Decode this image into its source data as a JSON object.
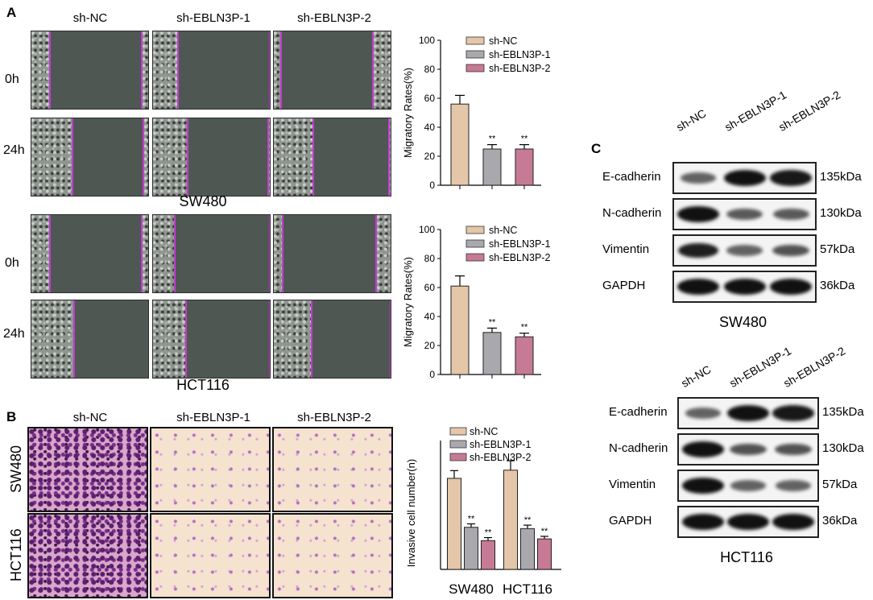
{
  "panels": {
    "A": {
      "letter": "A",
      "groups": [
        "sh-NC",
        "sh-EBLN3P-1",
        "sh-EBLN3P-2"
      ],
      "time_labels": [
        "0h",
        "24h"
      ],
      "cell_lines": [
        "SW480",
        "HCT116"
      ]
    },
    "B": {
      "letter": "B",
      "groups": [
        "sh-NC",
        "sh-EBLN3P-1",
        "sh-EBLN3P-2"
      ],
      "cell_lines": [
        "SW480",
        "HCT116"
      ]
    },
    "C": {
      "letter": "C",
      "groups": [
        "sh-NC",
        "sh-EBLN3P-1",
        "sh-EBLN3P-2"
      ],
      "proteins": [
        "E-cadherin",
        "N-cadherin",
        "Vimentin",
        "GAPDH"
      ],
      "sizes": [
        "135kDa",
        "130kDa",
        "57kDa",
        "36kDa"
      ],
      "cell_lines": [
        "SW480",
        "HCT116"
      ],
      "band_intensity": {
        "SW480": [
          [
            0.45,
            1.0,
            0.95
          ],
          [
            1.0,
            0.5,
            0.5
          ],
          [
            0.9,
            0.45,
            0.55
          ],
          [
            1.0,
            1.0,
            1.0
          ]
        ],
        "HCT116": [
          [
            0.45,
            1.0,
            0.95
          ],
          [
            1.0,
            0.55,
            0.55
          ],
          [
            1.0,
            0.45,
            0.45
          ],
          [
            1.0,
            1.0,
            1.0
          ]
        ]
      }
    }
  },
  "colors": {
    "sh-NC": "#e4c6a8",
    "sh-EBLN3P-1": "#a9a9ad",
    "sh-EBLN3P-2": "#c77a95",
    "scratch_line": "#c13bd0"
  },
  "chart_data": [
    {
      "type": "bar",
      "panel": "A-SW480",
      "categories": [
        "sh-NC",
        "sh-EBLN3P-1",
        "sh-EBLN3P-2"
      ],
      "values": [
        56,
        25,
        25
      ],
      "errors": [
        6,
        3,
        3
      ],
      "significance": [
        "",
        "**",
        "**"
      ],
      "ylabel": "Migratory Rates(%)",
      "ylim": [
        0,
        100
      ],
      "yticks": [
        0,
        20,
        40,
        60,
        80,
        100
      ],
      "legend": [
        "sh-NC",
        "sh-EBLN3P-1",
        "sh-EBLN3P-2"
      ]
    },
    {
      "type": "bar",
      "panel": "A-HCT116",
      "categories": [
        "sh-NC",
        "sh-EBLN3P-1",
        "sh-EBLN3P-2"
      ],
      "values": [
        61,
        29,
        26
      ],
      "errors": [
        7,
        3,
        2.5
      ],
      "significance": [
        "",
        "**",
        "**"
      ],
      "ylabel": "Migratory Rates(%)",
      "ylim": [
        0,
        100
      ],
      "yticks": [
        0,
        20,
        40,
        60,
        80,
        100
      ],
      "legend": [
        "sh-NC",
        "sh-EBLN3P-1",
        "sh-EBLN3P-2"
      ]
    },
    {
      "type": "bar",
      "panel": "B",
      "categories": [
        "SW480",
        "HCT116"
      ],
      "series": [
        {
          "name": "sh-NC",
          "values": [
            212,
            231
          ],
          "errors": [
            18,
            22
          ]
        },
        {
          "name": "sh-EBLN3P-1",
          "values": [
            98,
            95
          ],
          "errors": [
            8,
            8
          ]
        },
        {
          "name": "sh-EBLN3P-2",
          "values": [
            67,
            71
          ],
          "errors": [
            7,
            6
          ]
        }
      ],
      "significance": [
        [
          "",
          "**",
          "**"
        ],
        [
          "",
          "**",
          "**"
        ]
      ],
      "ylabel": "Invasive cell number(n)",
      "ylim": [
        0,
        300
      ],
      "legend": [
        "sh-NC",
        "sh-EBLN3P-1",
        "sh-EBLN3P-2"
      ]
    }
  ]
}
